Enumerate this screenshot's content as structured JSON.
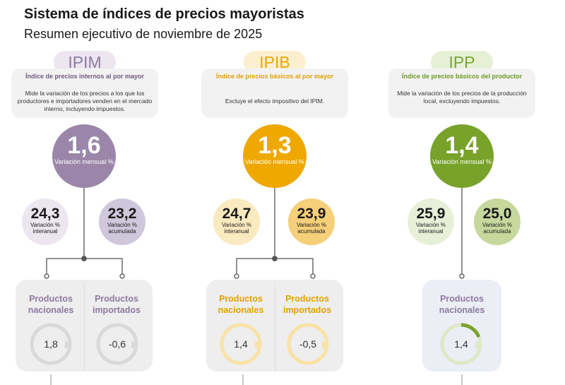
{
  "header": {
    "title": "Sistema de índices de precios mayoristas",
    "subtitle": "Resumen ejecutivo de noviembre de 2025"
  },
  "indices": [
    {
      "code": "IPIM",
      "name": "Índice de precios internos al por mayor",
      "description": "Mide la variación de los precios a los que los productores e importadores venden en el mercado interno, incluyendo impuestos.",
      "monthly": "1,6",
      "monthly_label": "Variación mensual %",
      "interanual": "24,3",
      "interanual_label": "Variación % interanual",
      "acumulada": "23,2",
      "acumulada_label": "Variación % acumulada",
      "products": [
        {
          "label": "Productos nacionales",
          "value": "1,8",
          "level": 1.8
        },
        {
          "label": "Productos importados",
          "value": "-0,6",
          "level": -0.6
        }
      ],
      "colors": {
        "main": "#9b86a9",
        "pill": "#ece6f0",
        "code": "#8e7aa0",
        "title": "#6e5a82",
        "inter": "#ece6f0",
        "acum": "#cfc7dc"
      }
    },
    {
      "code": "IPIB",
      "name": "Índice de precios básicos al por mayor",
      "description": "Excluye el efecto impositivo del IPIM.",
      "monthly": "1,3",
      "monthly_label": "Variación mensual %",
      "interanual": "24,7",
      "interanual_label": "Variación % interanual",
      "acumulada": "23,9",
      "acumulada_label": "Variación % acumulada",
      "products": [
        {
          "label": "Productos nacionales",
          "value": "1,4",
          "level": 1.4
        },
        {
          "label": "Productos importados",
          "value": "-0,5",
          "level": -0.5
        }
      ],
      "colors": {
        "main": "#eea800",
        "pill": "#fcefcf",
        "code": "#e6a800",
        "title": "#e3a100",
        "inter": "#fbe9bf",
        "acum": "#f6cf7a"
      }
    },
    {
      "code": "IPP",
      "name": "Índice de precios básicos del productor",
      "description": "Mide la variación de los precios de la producción local, excluyendo impuestos.",
      "monthly": "1,4",
      "monthly_label": "Variación mensual %",
      "interanual": "25,9",
      "interanual_label": "Variación % interanual",
      "acumulada": "25,0",
      "acumulada_label": "Variación % acumulada",
      "products": [
        {
          "label": "Productos nacionales",
          "value": "1,4",
          "level": 1.4
        }
      ],
      "colors": {
        "main": "#78a22a",
        "pill": "#e7f0d5",
        "code": "#7aa537",
        "title": "#6f9a26",
        "inter": "#e8efd8",
        "acum": "#c6d89c"
      }
    }
  ]
}
